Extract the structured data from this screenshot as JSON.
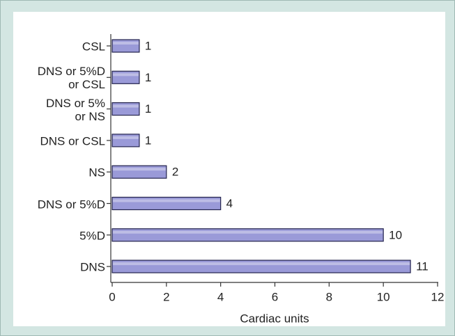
{
  "chart_data": {
    "type": "barh",
    "xlabel": "Cardiac units",
    "categories": [
      "CSL",
      "DNS or 5%D\nor CSL",
      "DNS or 5%\nor NS",
      "DNS or CSL",
      "NS",
      "DNS or 5%D",
      "5%D",
      "DNS"
    ],
    "values": [
      1,
      1,
      1,
      1,
      2,
      4,
      10,
      11
    ],
    "color": "#9a9ad8",
    "xlim": [
      0,
      12
    ],
    "xticks": [
      0,
      2,
      4,
      6,
      8,
      10,
      12
    ]
  }
}
